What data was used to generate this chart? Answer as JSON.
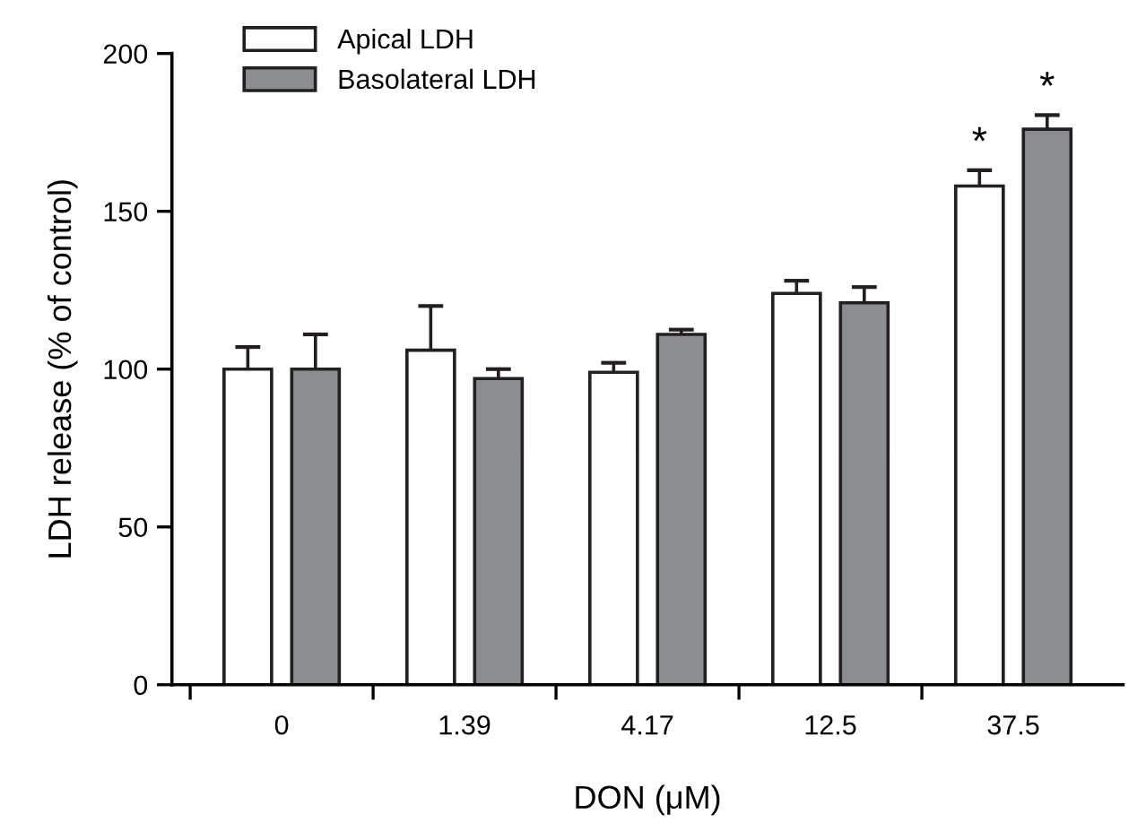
{
  "chart_data": {
    "type": "bar",
    "xlabel": "DON (μM)",
    "ylabel": "LDH release (% of control)",
    "categories": [
      "0",
      "1.39",
      "4.17",
      "12.5",
      "37.5"
    ],
    "series": [
      {
        "name": "Apical LDH",
        "color": "#ffffff",
        "values": [
          100,
          106,
          99,
          124,
          158
        ],
        "errors": [
          7,
          14,
          3,
          4,
          5
        ]
      },
      {
        "name": "Basolateral LDH",
        "color": "#8c8d91",
        "values": [
          100,
          97,
          111,
          121,
          176
        ],
        "errors": [
          11,
          3,
          1.5,
          5,
          4.5
        ]
      }
    ],
    "ylim": [
      0,
      200
    ],
    "yticks": [
      0,
      50,
      100,
      150,
      200
    ],
    "grid": false,
    "legend": "top left",
    "annotations": [
      "*",
      "*"
    ]
  }
}
